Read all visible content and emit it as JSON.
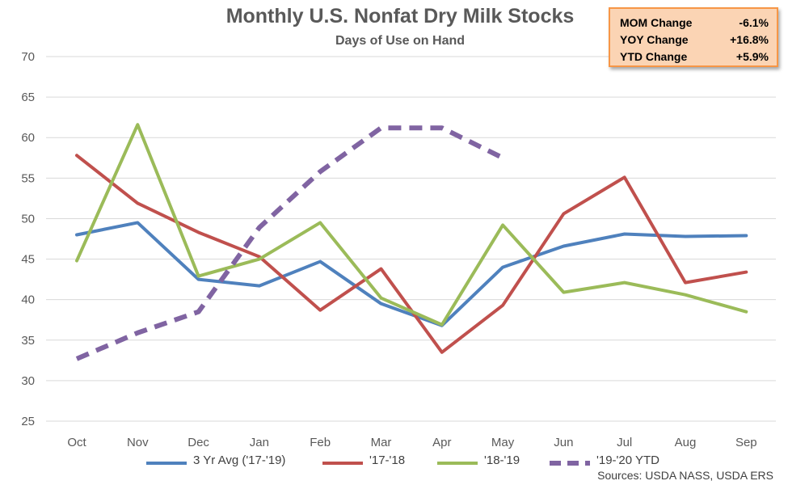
{
  "chart_data": {
    "type": "line",
    "title": "Monthly U.S. Nonfat Dry Milk Stocks",
    "subtitle": "Days of Use on Hand",
    "xlabel": "",
    "ylabel": "",
    "categories": [
      "Oct",
      "Nov",
      "Dec",
      "Jan",
      "Feb",
      "Mar",
      "Apr",
      "May",
      "Jun",
      "Jul",
      "Aug",
      "Sep"
    ],
    "ylim": [
      25,
      70
    ],
    "yticks": [
      25,
      30,
      35,
      40,
      45,
      50,
      55,
      60,
      65,
      70
    ],
    "grid": true,
    "legend_position": "bottom",
    "series": [
      {
        "name": "3 Yr Avg ('17-'19)",
        "color": "#4f81bd",
        "dashed": false,
        "values": [
          48.0,
          49.5,
          42.5,
          41.7,
          44.7,
          39.5,
          36.8,
          44.0,
          46.6,
          48.1,
          47.8,
          47.9
        ]
      },
      {
        "name": "'17-'18",
        "color": "#c0504d",
        "dashed": false,
        "values": [
          57.8,
          51.9,
          48.3,
          45.3,
          38.7,
          43.8,
          33.5,
          39.3,
          50.6,
          55.1,
          42.1,
          43.4
        ]
      },
      {
        "name": "'18-'19",
        "color": "#9bbb59",
        "dashed": false,
        "values": [
          44.8,
          61.6,
          42.9,
          45.0,
          49.5,
          40.2,
          36.9,
          49.2,
          40.9,
          42.1,
          40.6,
          38.5
        ]
      },
      {
        "name": "'19-'20 YTD",
        "color": "#8064a2",
        "dashed": true,
        "values": [
          32.7,
          35.9,
          38.5,
          48.9,
          55.8,
          61.2,
          61.2,
          57.5,
          null,
          null,
          null,
          null
        ]
      }
    ]
  },
  "stats": [
    {
      "label": "MOM Change",
      "value": "-6.1%"
    },
    {
      "label": "YOY Change",
      "value": "+16.8%"
    },
    {
      "label": "YTD Change",
      "value": "+5.9%"
    }
  ],
  "sources": "Sources: USDA NASS, USDA ERS"
}
